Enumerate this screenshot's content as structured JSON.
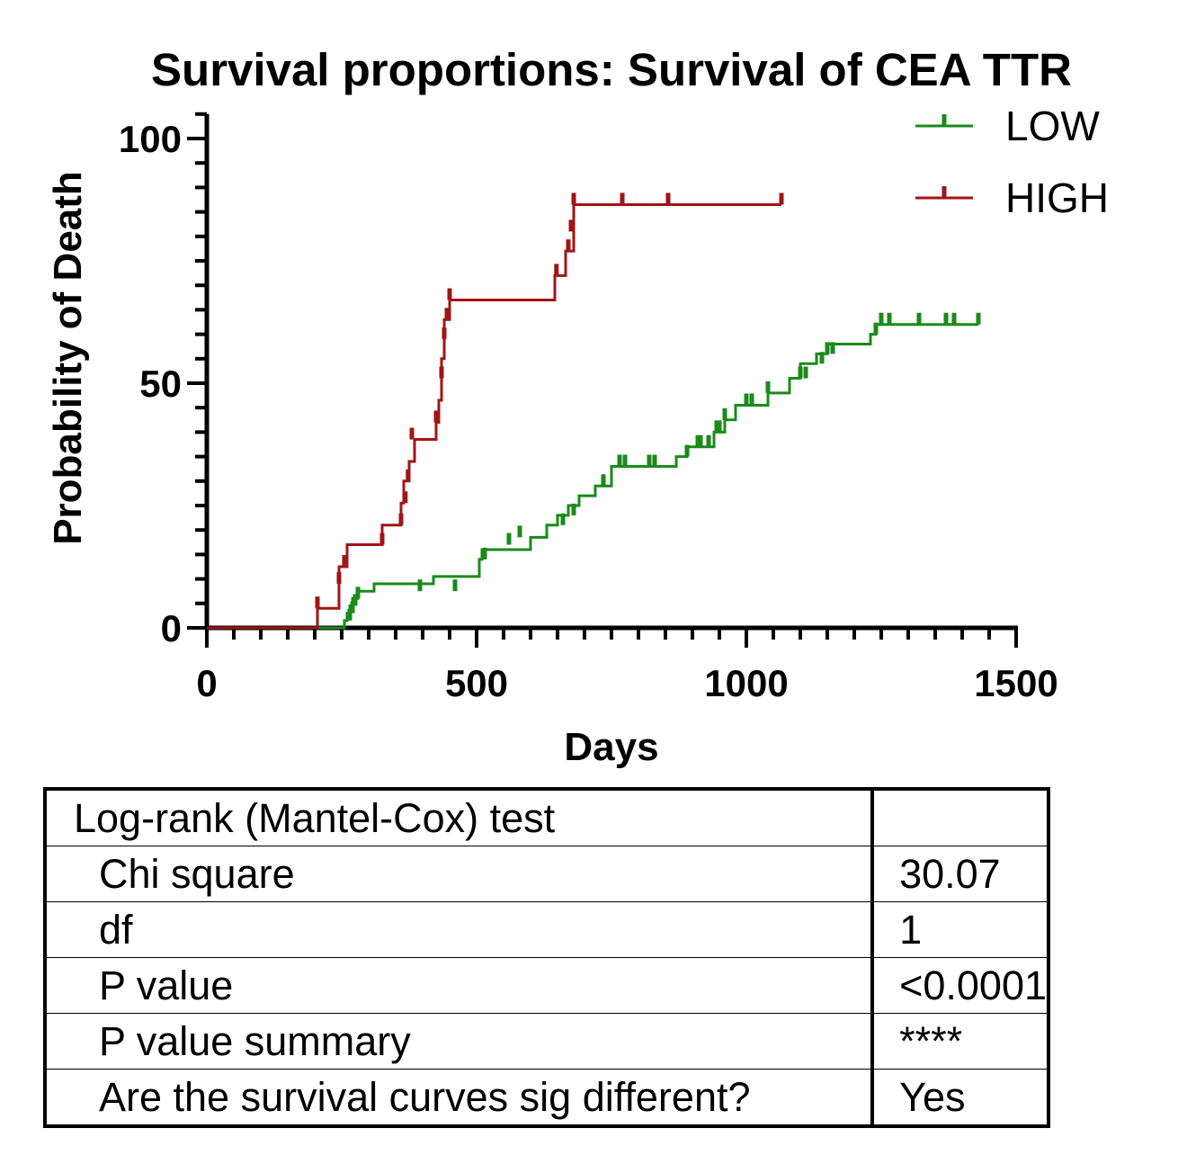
{
  "chart_data": {
    "type": "line",
    "step": true,
    "title": "Survival proportions: Survival of CEA TTR",
    "xlabel": "Days",
    "ylabel": "Probability of Death",
    "xlim": [
      0,
      1500
    ],
    "ylim": [
      0,
      105
    ],
    "xticks": [
      0,
      500,
      1000,
      1500
    ],
    "yticks": [
      0,
      50,
      100
    ],
    "legend_position": "top-right",
    "series": [
      {
        "name": "LOW",
        "color": "#1a8a1a",
        "x": [
          0,
          255,
          260,
          265,
          270,
          280,
          310,
          420,
          505,
          510,
          600,
          630,
          650,
          670,
          690,
          720,
          750,
          870,
          890,
          940,
          960,
          980,
          1040,
          1080,
          1100,
          1130,
          1150,
          1230,
          1240
        ],
        "y": [
          0,
          1.5,
          3.0,
          4.5,
          6.0,
          7.5,
          9.0,
          10.5,
          14.0,
          16.0,
          18.5,
          21.0,
          23.0,
          25.0,
          27.0,
          29.0,
          33.0,
          35.0,
          37.0,
          40.0,
          42.5,
          45.5,
          48.0,
          51.0,
          54.0,
          56.0,
          58.0,
          60.0,
          62.0
        ],
        "censor_x": [
          265,
          270,
          275,
          280,
          395,
          460,
          515,
          560,
          580,
          660,
          680,
          735,
          765,
          775,
          820,
          830,
          890,
          910,
          915,
          930,
          945,
          950,
          960,
          1000,
          1010,
          1040,
          1100,
          1110,
          1140,
          1150,
          1160,
          1240,
          1250,
          1265,
          1320,
          1370,
          1385,
          1430
        ],
        "censor_y": [
          1.5,
          3.0,
          4.5,
          6.0,
          7.5,
          7.5,
          14.0,
          17.0,
          18.5,
          21.0,
          23.0,
          29.0,
          33.0,
          33.0,
          33.0,
          33.0,
          35.0,
          37.0,
          37.0,
          37.0,
          40.0,
          40.0,
          42.5,
          45.5,
          45.5,
          48.0,
          51.0,
          51.0,
          54.0,
          56.0,
          56.0,
          60.0,
          62.0,
          62.0,
          62.0,
          62.0,
          62.0,
          62.0
        ]
      },
      {
        "name": "HIGH",
        "color": "#a01515",
        "x": [
          0,
          205,
          245,
          260,
          325,
          360,
          365,
          375,
          385,
          425,
          430,
          435,
          440,
          450,
          645,
          665,
          680
        ],
        "y": [
          0,
          4.0,
          12.5,
          17.0,
          21.0,
          25.5,
          30.0,
          34.0,
          38.5,
          42.0,
          46.5,
          55.0,
          63.0,
          67.0,
          72.0,
          77.0,
          86.5
        ],
        "censor_x": [
          205,
          245,
          255,
          325,
          360,
          368,
          373,
          380,
          425,
          435,
          440,
          445,
          450,
          648,
          670,
          675,
          680,
          770,
          855,
          1065
        ],
        "censor_y": [
          4.0,
          9.0,
          12.5,
          17.0,
          21.0,
          25.5,
          30.0,
          38.5,
          42.0,
          51.0,
          59.0,
          63.0,
          67.0,
          72.0,
          77.0,
          81.0,
          86.5,
          86.5,
          86.5,
          86.5
        ]
      }
    ]
  },
  "stats_table": {
    "rows": [
      {
        "label": "Log-rank (Mantel-Cox) test",
        "value": ""
      },
      {
        "label": "Chi square",
        "value": "30.07"
      },
      {
        "label": "df",
        "value": "1"
      },
      {
        "label": "P value",
        "value": "<0.0001"
      },
      {
        "label": "P value summary",
        "value": "****"
      },
      {
        "label": "Are the survival curves sig different?",
        "value": "Yes"
      }
    ]
  }
}
